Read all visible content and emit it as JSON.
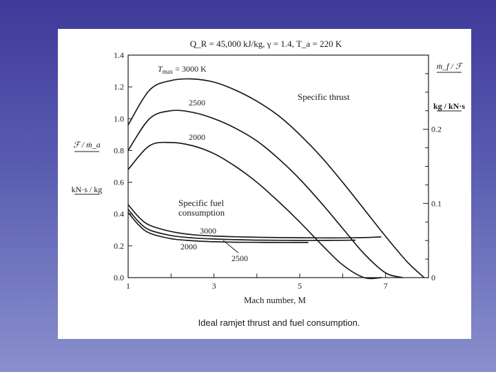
{
  "caption": "Ideal ramjet thrust and fuel consumption.",
  "colors": {
    "background_top": "#3f3a9a",
    "background_bottom": "#8a8fcd",
    "panel": "#ffffff",
    "ink": "#1a1a1a"
  },
  "chart_data": {
    "type": "line",
    "title": "Q_R = 45,000 kJ/kg, γ = 1.4, T_a = 220 K",
    "xlabel": "Mach number, M",
    "x_ticks": [
      "1",
      "3",
      "5",
      "7"
    ],
    "xlim": [
      1,
      8
    ],
    "left_axis": {
      "label_top": "ℱ / ṁ_a",
      "label_units": "kN·s / kg",
      "ticks": [
        "0.0",
        "0.2",
        "0.4",
        "0.6",
        "0.8",
        "1.0",
        "1.2",
        "1.4"
      ],
      "ylim": [
        0,
        1.4
      ]
    },
    "right_axis": {
      "label_top": "ṁ_f / ℱ",
      "label_units": "kg / kN·s",
      "ticks": [
        "0",
        "0.1",
        "0.2"
      ],
      "ylim": [
        0,
        0.3
      ]
    },
    "annotations": [
      "Specific thrust",
      "Specific fuel consumption"
    ],
    "series": [
      {
        "name": "Tmax = 3000 K",
        "group": "Specific thrust",
        "axis": "left",
        "x": [
          1.0,
          1.5,
          2.0,
          2.5,
          3.0,
          3.5,
          4.0,
          4.5,
          5.0,
          5.5,
          6.0,
          6.5,
          7.0,
          7.5,
          7.9
        ],
        "y": [
          0.96,
          1.18,
          1.24,
          1.25,
          1.23,
          1.18,
          1.11,
          1.02,
          0.9,
          0.76,
          0.6,
          0.43,
          0.26,
          0.1,
          0.0
        ]
      },
      {
        "name": "2500",
        "group": "Specific thrust",
        "axis": "left",
        "x": [
          1.0,
          1.5,
          2.0,
          2.5,
          3.0,
          3.5,
          4.0,
          4.5,
          5.0,
          5.5,
          6.0,
          6.5,
          7.0,
          7.4
        ],
        "y": [
          0.8,
          1.0,
          1.05,
          1.04,
          1.0,
          0.94,
          0.86,
          0.75,
          0.62,
          0.47,
          0.31,
          0.15,
          0.03,
          0.0
        ]
      },
      {
        "name": "2000",
        "group": "Specific thrust",
        "axis": "left",
        "x": [
          1.0,
          1.5,
          2.0,
          2.5,
          3.0,
          3.5,
          4.0,
          4.5,
          5.0,
          5.5,
          6.0,
          6.5,
          6.9
        ],
        "y": [
          0.68,
          0.83,
          0.85,
          0.83,
          0.78,
          0.7,
          0.6,
          0.48,
          0.35,
          0.21,
          0.08,
          0.0,
          0.0
        ]
      },
      {
        "name": "3000",
        "group": "Specific fuel consumption",
        "axis": "left",
        "x": [
          1.0,
          1.25,
          1.5,
          2.0,
          2.5,
          3.0,
          3.5,
          4.0,
          4.5,
          5.0,
          5.5,
          6.0,
          6.5,
          6.9
        ],
        "y": [
          0.46,
          0.38,
          0.33,
          0.29,
          0.27,
          0.262,
          0.257,
          0.254,
          0.252,
          0.251,
          0.25,
          0.25,
          0.252,
          0.256
        ]
      },
      {
        "name": "2500",
        "group": "Specific fuel consumption",
        "axis": "left",
        "x": [
          1.0,
          1.25,
          1.5,
          2.0,
          2.5,
          3.0,
          3.5,
          4.0,
          4.5,
          5.0,
          5.5,
          6.0,
          6.3
        ],
        "y": [
          0.43,
          0.35,
          0.3,
          0.265,
          0.25,
          0.243,
          0.239,
          0.236,
          0.235,
          0.234,
          0.234,
          0.235,
          0.236
        ]
      },
      {
        "name": "2000",
        "group": "Specific fuel consumption",
        "axis": "left",
        "x": [
          1.0,
          1.25,
          1.5,
          2.0,
          2.5,
          3.0,
          3.5,
          4.0,
          4.5,
          5.0,
          5.2
        ],
        "y": [
          0.41,
          0.33,
          0.28,
          0.245,
          0.232,
          0.226,
          0.223,
          0.222,
          0.221,
          0.221,
          0.221
        ]
      }
    ],
    "series_labels": [
      "T",
      "max",
      " = 3000 K",
      "2500",
      "2000",
      "3000",
      "2000",
      "2500"
    ],
    "grid": false,
    "legend": "none"
  }
}
